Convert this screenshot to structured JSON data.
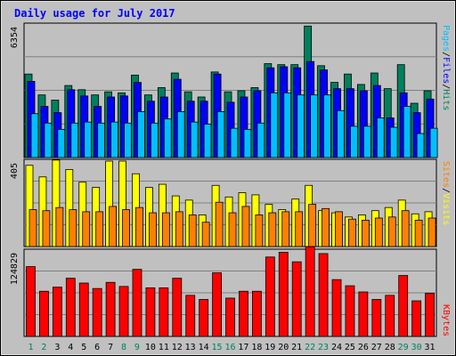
{
  "chart_data": [
    {
      "type": "bar",
      "title": "Daily usage for July 2017",
      "categories": [
        "1",
        "2",
        "3",
        "4",
        "5",
        "6",
        "7",
        "8",
        "9",
        "10",
        "11",
        "12",
        "13",
        "14",
        "15",
        "16",
        "17",
        "18",
        "19",
        "20",
        "21",
        "22",
        "23",
        "24",
        "25",
        "26",
        "27",
        "28",
        "29",
        "30",
        "31"
      ],
      "weekend_days": [
        1,
        2,
        8,
        9,
        15,
        16,
        22,
        23,
        29,
        30
      ],
      "ymax_label": "6354",
      "ylim": [
        0,
        6354
      ],
      "right_labels": [
        "Pages",
        "/",
        "Files",
        "/",
        "Hits"
      ],
      "series": [
        {
          "name": "Hits",
          "color": "#00805c",
          "values": [
            4000,
            3000,
            2750,
            3450,
            3250,
            3000,
            3150,
            3100,
            3950,
            3000,
            3350,
            4050,
            3150,
            2900,
            4100,
            3150,
            3200,
            3350,
            4500,
            4450,
            4450,
            6300,
            4400,
            3600,
            4000,
            3500,
            4050,
            3300,
            4450,
            2600,
            3200
          ]
        },
        {
          "name": "Files",
          "color": "#0000ff",
          "values": [
            3650,
            2450,
            2150,
            3250,
            2950,
            2450,
            2900,
            2950,
            3600,
            2700,
            2900,
            3750,
            2700,
            2700,
            4000,
            2650,
            2900,
            3200,
            4300,
            4350,
            4300,
            4600,
            4200,
            3300,
            3300,
            3200,
            3450,
            1900,
            3100,
            2150,
            2800
          ]
        },
        {
          "name": "Pages",
          "color": "#00bfff",
          "values": [
            2100,
            1650,
            1350,
            1650,
            1700,
            1650,
            1700,
            1650,
            2200,
            1650,
            1850,
            2200,
            1700,
            1600,
            2200,
            1400,
            1350,
            1650,
            3100,
            3100,
            3000,
            3000,
            3000,
            2250,
            1500,
            1500,
            1900,
            1450,
            2450,
            1150,
            1400
          ]
        }
      ]
    },
    {
      "type": "bar",
      "ymax_label": "405",
      "ylim": [
        0,
        405
      ],
      "right_labels": [
        "Sites",
        "/",
        "Visits"
      ],
      "series": [
        {
          "name": "Visits",
          "color": "#ffff00",
          "values": [
            385,
            330,
            410,
            365,
            305,
            280,
            405,
            405,
            345,
            280,
            295,
            240,
            220,
            150,
            290,
            235,
            255,
            245,
            200,
            175,
            225,
            290,
            170,
            160,
            140,
            150,
            170,
            185,
            220,
            155,
            165
          ]
        },
        {
          "name": "Sites",
          "color": "#ff8000",
          "values": [
            175,
            170,
            185,
            175,
            165,
            165,
            190,
            175,
            185,
            160,
            160,
            165,
            150,
            115,
            210,
            160,
            190,
            150,
            160,
            165,
            165,
            200,
            180,
            165,
            130,
            125,
            135,
            140,
            170,
            125,
            135
          ]
        }
      ]
    },
    {
      "type": "bar",
      "ymax_label": "124829",
      "ylim": [
        0,
        124829
      ],
      "right_labels": [
        "KBytes"
      ],
      "series": [
        {
          "name": "KBytes",
          "color": "#ff0000",
          "values": [
            102000,
            66000,
            72000,
            85000,
            78000,
            70000,
            79000,
            73000,
            98000,
            71000,
            71000,
            85000,
            60000,
            54000,
            93000,
            56000,
            66000,
            66000,
            116000,
            123000,
            109000,
            131000,
            121000,
            83000,
            74000,
            65000,
            54000,
            60000,
            89000,
            52000,
            63000
          ]
        }
      ]
    }
  ]
}
